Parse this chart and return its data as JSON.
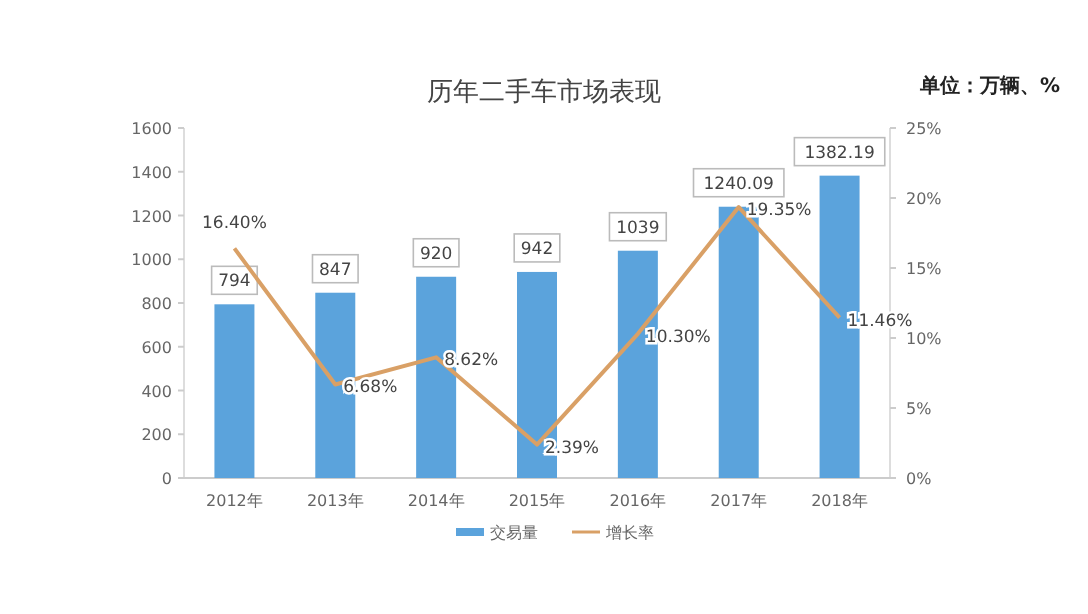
{
  "chart_data": {
    "type": "bar",
    "title": "历年二手车市场表现",
    "annotations": [
      "单位：万辆、%"
    ],
    "categories": [
      "2012年",
      "2013年",
      "2014年",
      "2015年",
      "2016年",
      "2017年",
      "2018年"
    ],
    "series": [
      {
        "name": "交易量",
        "color": "#5ba3dc",
        "values": [
          794,
          847,
          920,
          942,
          1039,
          1240.09,
          1382.19
        ],
        "value_labels": [
          "794",
          "847",
          "920",
          "942",
          "1039",
          "1240.09",
          "1382.19"
        ]
      },
      {
        "name": "增长率",
        "type": "line",
        "axis": "y2",
        "color": "#d9a066",
        "values": [
          16.4,
          6.68,
          8.62,
          2.39,
          10.3,
          19.35,
          11.46
        ],
        "value_labels": [
          "16.40%",
          "6.68%",
          "8.62%",
          "2.39%",
          "10.30%",
          "19.35%",
          "11.46%"
        ]
      }
    ],
    "ylim": [
      0,
      1600
    ],
    "yticks": [
      0,
      200,
      400,
      600,
      800,
      1000,
      1200,
      1400,
      1600
    ],
    "y2lim": [
      0,
      25
    ],
    "y2ticks": [
      {
        "value": 0,
        "label": "0%"
      },
      {
        "value": 5,
        "label": "5%"
      },
      {
        "value": 10,
        "label": "10%"
      },
      {
        "value": 15,
        "label": "15%"
      },
      {
        "value": 20,
        "label": "20%"
      },
      {
        "value": 25,
        "label": "25%"
      }
    ],
    "grid": false,
    "legend": "bottom",
    "marker": "none",
    "line_style": "solid"
  }
}
